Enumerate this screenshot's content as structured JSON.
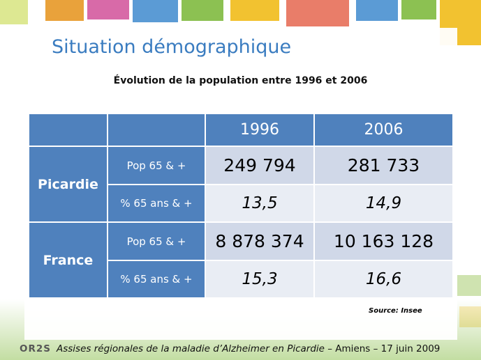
{
  "header": {
    "title": "Situation démographique",
    "subtitle": "Évolution de la population entre 1996 et 2006"
  },
  "table": {
    "columns": [
      "1996",
      "2006"
    ],
    "groups": [
      {
        "name": "Picardie",
        "rows": [
          {
            "label": "Pop 65 & +",
            "values": [
              "249 794",
              "281 733"
            ]
          },
          {
            "label": "% 65 ans & +",
            "values": [
              "13,5",
              "14,9"
            ]
          }
        ]
      },
      {
        "name": "France",
        "rows": [
          {
            "label": "Pop 65 & +",
            "values": [
              "8 878 374",
              "10 163 128"
            ]
          },
          {
            "label": "% 65 ans & +",
            "values": [
              "15,3",
              "16,6"
            ]
          }
        ]
      }
    ]
  },
  "source": "Source: Insee",
  "footer": {
    "logo": "OR2S",
    "event": "Assises régionales de la maladie d’Alzheimer en Picardie",
    "place_date": " – Amiens – 17 juin 2009"
  }
}
